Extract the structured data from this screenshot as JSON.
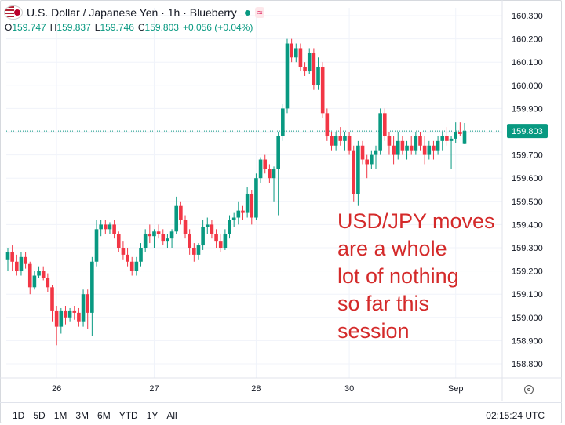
{
  "header": {
    "symbol_title": "U.S. Dollar / Japanese Yen · 1h · Blueberry",
    "wave_icon": "≈",
    "ohlc": [
      {
        "label": "O",
        "value": "159.747"
      },
      {
        "label": "H",
        "value": "159.837"
      },
      {
        "label": "L",
        "value": "159.746"
      },
      {
        "label": "C",
        "value": "159.803"
      }
    ],
    "change": "+0.056 (+0.04%)",
    "status_color": "#089981"
  },
  "annotation_lines": [
    "USD/JPY moves",
    "are a whole",
    "lot of nothing",
    "so far this",
    "session"
  ],
  "last_price_label": "159.803",
  "bottom": {
    "ranges": [
      "1D",
      "5D",
      "1M",
      "3M",
      "6M",
      "YTD",
      "1Y",
      "All"
    ],
    "clock": "02:15:24 UTC",
    "settings_icon": "settings-gear-icon"
  },
  "colors": {
    "up": "#089981",
    "down": "#f23645",
    "annotation": "#d42a2a"
  },
  "chart_data": {
    "type": "candlestick",
    "title": "",
    "ylim": [
      158.75,
      160.32
    ],
    "y_ticks": [
      "160.300",
      "160.200",
      "160.100",
      "160.000",
      "159.900",
      "159.800",
      "159.700",
      "159.600",
      "159.500",
      "159.400",
      "159.300",
      "159.200",
      "159.100",
      "159.000",
      "158.900",
      "158.800"
    ],
    "x_ticks": [
      {
        "label": "26",
        "index": 11
      },
      {
        "label": "27",
        "index": 33
      },
      {
        "label": "28",
        "index": 56
      },
      {
        "label": "30",
        "index": 77
      },
      {
        "label": "Sep",
        "index": 101
      }
    ],
    "last_price": 159.803,
    "candles": [
      {
        "o": 159.25,
        "h": 159.3,
        "l": 159.2,
        "c": 159.28
      },
      {
        "o": 159.28,
        "h": 159.31,
        "l": 159.2,
        "c": 159.24
      },
      {
        "o": 159.24,
        "h": 159.27,
        "l": 159.18,
        "c": 159.2
      },
      {
        "o": 159.2,
        "h": 159.28,
        "l": 159.18,
        "c": 159.26
      },
      {
        "o": 159.26,
        "h": 159.28,
        "l": 159.21,
        "c": 159.23
      },
      {
        "o": 159.23,
        "h": 159.24,
        "l": 159.1,
        "c": 159.13
      },
      {
        "o": 159.13,
        "h": 159.2,
        "l": 159.12,
        "c": 159.18
      },
      {
        "o": 159.18,
        "h": 159.22,
        "l": 159.17,
        "c": 159.2
      },
      {
        "o": 159.2,
        "h": 159.22,
        "l": 159.16,
        "c": 159.17
      },
      {
        "o": 159.17,
        "h": 159.19,
        "l": 159.11,
        "c": 159.13
      },
      {
        "o": 159.13,
        "h": 159.14,
        "l": 158.98,
        "c": 159.03
      },
      {
        "o": 159.03,
        "h": 159.05,
        "l": 158.88,
        "c": 158.96
      },
      {
        "o": 158.96,
        "h": 159.04,
        "l": 158.93,
        "c": 159.03
      },
      {
        "o": 159.03,
        "h": 159.05,
        "l": 158.97,
        "c": 159.0
      },
      {
        "o": 159.0,
        "h": 159.04,
        "l": 158.98,
        "c": 159.03
      },
      {
        "o": 159.03,
        "h": 159.05,
        "l": 158.99,
        "c": 159.02
      },
      {
        "o": 159.02,
        "h": 159.04,
        "l": 158.96,
        "c": 158.98
      },
      {
        "o": 158.98,
        "h": 159.12,
        "l": 158.96,
        "c": 159.1
      },
      {
        "o": 159.1,
        "h": 159.12,
        "l": 158.95,
        "c": 159.02
      },
      {
        "o": 159.02,
        "h": 159.26,
        "l": 158.92,
        "c": 159.24
      },
      {
        "o": 159.24,
        "h": 159.42,
        "l": 159.22,
        "c": 159.38
      },
      {
        "o": 159.38,
        "h": 159.42,
        "l": 159.35,
        "c": 159.4
      },
      {
        "o": 159.4,
        "h": 159.42,
        "l": 159.36,
        "c": 159.38
      },
      {
        "o": 159.38,
        "h": 159.41,
        "l": 159.36,
        "c": 159.4
      },
      {
        "o": 159.4,
        "h": 159.42,
        "l": 159.34,
        "c": 159.36
      },
      {
        "o": 159.36,
        "h": 159.37,
        "l": 159.28,
        "c": 159.3
      },
      {
        "o": 159.3,
        "h": 159.33,
        "l": 159.25,
        "c": 159.27
      },
      {
        "o": 159.27,
        "h": 159.3,
        "l": 159.22,
        "c": 159.24
      },
      {
        "o": 159.24,
        "h": 159.26,
        "l": 159.18,
        "c": 159.2
      },
      {
        "o": 159.2,
        "h": 159.26,
        "l": 159.18,
        "c": 159.24
      },
      {
        "o": 159.24,
        "h": 159.32,
        "l": 159.22,
        "c": 159.3
      },
      {
        "o": 159.3,
        "h": 159.38,
        "l": 159.28,
        "c": 159.36
      },
      {
        "o": 159.36,
        "h": 159.4,
        "l": 159.32,
        "c": 159.35
      },
      {
        "o": 159.35,
        "h": 159.38,
        "l": 159.3,
        "c": 159.37
      },
      {
        "o": 159.37,
        "h": 159.4,
        "l": 159.34,
        "c": 159.36
      },
      {
        "o": 159.36,
        "h": 159.38,
        "l": 159.31,
        "c": 159.33
      },
      {
        "o": 159.33,
        "h": 159.36,
        "l": 159.3,
        "c": 159.34
      },
      {
        "o": 159.34,
        "h": 159.38,
        "l": 159.3,
        "c": 159.37
      },
      {
        "o": 159.37,
        "h": 159.52,
        "l": 159.36,
        "c": 159.48
      },
      {
        "o": 159.48,
        "h": 159.5,
        "l": 159.4,
        "c": 159.42
      },
      {
        "o": 159.42,
        "h": 159.44,
        "l": 159.34,
        "c": 159.36
      },
      {
        "o": 159.36,
        "h": 159.38,
        "l": 159.27,
        "c": 159.3
      },
      {
        "o": 159.3,
        "h": 159.32,
        "l": 159.24,
        "c": 159.27
      },
      {
        "o": 159.27,
        "h": 159.32,
        "l": 159.25,
        "c": 159.31
      },
      {
        "o": 159.31,
        "h": 159.42,
        "l": 159.29,
        "c": 159.39
      },
      {
        "o": 159.39,
        "h": 159.43,
        "l": 159.36,
        "c": 159.4
      },
      {
        "o": 159.4,
        "h": 159.42,
        "l": 159.34,
        "c": 159.36
      },
      {
        "o": 159.36,
        "h": 159.38,
        "l": 159.3,
        "c": 159.33
      },
      {
        "o": 159.33,
        "h": 159.36,
        "l": 159.28,
        "c": 159.3
      },
      {
        "o": 159.3,
        "h": 159.38,
        "l": 159.29,
        "c": 159.36
      },
      {
        "o": 159.36,
        "h": 159.44,
        "l": 159.34,
        "c": 159.42
      },
      {
        "o": 159.42,
        "h": 159.45,
        "l": 159.39,
        "c": 159.43
      },
      {
        "o": 159.43,
        "h": 159.5,
        "l": 159.4,
        "c": 159.46
      },
      {
        "o": 159.46,
        "h": 159.48,
        "l": 159.42,
        "c": 159.45
      },
      {
        "o": 159.45,
        "h": 159.56,
        "l": 159.43,
        "c": 159.53
      },
      {
        "o": 159.53,
        "h": 159.55,
        "l": 159.4,
        "c": 159.43
      },
      {
        "o": 159.43,
        "h": 159.62,
        "l": 159.42,
        "c": 159.6
      },
      {
        "o": 159.6,
        "h": 159.69,
        "l": 159.58,
        "c": 159.68
      },
      {
        "o": 159.68,
        "h": 159.7,
        "l": 159.62,
        "c": 159.64
      },
      {
        "o": 159.64,
        "h": 159.66,
        "l": 159.58,
        "c": 159.6
      },
      {
        "o": 159.6,
        "h": 159.65,
        "l": 159.5,
        "c": 159.64
      },
      {
        "o": 159.64,
        "h": 159.8,
        "l": 159.44,
        "c": 159.78
      },
      {
        "o": 159.78,
        "h": 159.92,
        "l": 159.76,
        "c": 159.9
      },
      {
        "o": 159.9,
        "h": 160.2,
        "l": 159.88,
        "c": 160.18
      },
      {
        "o": 160.18,
        "h": 160.2,
        "l": 160.1,
        "c": 160.12
      },
      {
        "o": 160.12,
        "h": 160.18,
        "l": 160.1,
        "c": 160.16
      },
      {
        "o": 160.16,
        "h": 160.18,
        "l": 160.06,
        "c": 160.08
      },
      {
        "o": 160.08,
        "h": 160.1,
        "l": 160.04,
        "c": 160.06
      },
      {
        "o": 160.06,
        "h": 160.16,
        "l": 160.05,
        "c": 160.14
      },
      {
        "o": 160.14,
        "h": 160.16,
        "l": 159.98,
        "c": 160.0
      },
      {
        "o": 160.0,
        "h": 160.12,
        "l": 159.98,
        "c": 160.08
      },
      {
        "o": 160.08,
        "h": 160.1,
        "l": 159.86,
        "c": 159.88
      },
      {
        "o": 159.88,
        "h": 159.9,
        "l": 159.76,
        "c": 159.78
      },
      {
        "o": 159.78,
        "h": 159.8,
        "l": 159.72,
        "c": 159.74
      },
      {
        "o": 159.74,
        "h": 159.8,
        "l": 159.72,
        "c": 159.78
      },
      {
        "o": 159.78,
        "h": 159.82,
        "l": 159.74,
        "c": 159.76
      },
      {
        "o": 159.76,
        "h": 159.8,
        "l": 159.72,
        "c": 159.78
      },
      {
        "o": 159.78,
        "h": 159.8,
        "l": 159.7,
        "c": 159.72
      },
      {
        "o": 159.72,
        "h": 159.74,
        "l": 159.5,
        "c": 159.53
      },
      {
        "o": 159.53,
        "h": 159.76,
        "l": 159.48,
        "c": 159.74
      },
      {
        "o": 159.74,
        "h": 159.76,
        "l": 159.66,
        "c": 159.68
      },
      {
        "o": 159.68,
        "h": 159.7,
        "l": 159.6,
        "c": 159.66
      },
      {
        "o": 159.66,
        "h": 159.72,
        "l": 159.64,
        "c": 159.7
      },
      {
        "o": 159.7,
        "h": 159.74,
        "l": 159.64,
        "c": 159.72
      },
      {
        "o": 159.72,
        "h": 159.9,
        "l": 159.7,
        "c": 159.88
      },
      {
        "o": 159.88,
        "h": 159.9,
        "l": 159.76,
        "c": 159.78
      },
      {
        "o": 159.78,
        "h": 159.8,
        "l": 159.7,
        "c": 159.74
      },
      {
        "o": 159.74,
        "h": 159.78,
        "l": 159.66,
        "c": 159.7
      },
      {
        "o": 159.7,
        "h": 159.8,
        "l": 159.68,
        "c": 159.76
      },
      {
        "o": 159.76,
        "h": 159.78,
        "l": 159.7,
        "c": 159.72
      },
      {
        "o": 159.72,
        "h": 159.76,
        "l": 159.68,
        "c": 159.74
      },
      {
        "o": 159.74,
        "h": 159.78,
        "l": 159.7,
        "c": 159.72
      },
      {
        "o": 159.72,
        "h": 159.8,
        "l": 159.7,
        "c": 159.78
      },
      {
        "o": 159.78,
        "h": 159.8,
        "l": 159.72,
        "c": 159.74
      },
      {
        "o": 159.74,
        "h": 159.78,
        "l": 159.66,
        "c": 159.7
      },
      {
        "o": 159.7,
        "h": 159.76,
        "l": 159.68,
        "c": 159.74
      },
      {
        "o": 159.74,
        "h": 159.76,
        "l": 159.68,
        "c": 159.72
      },
      {
        "o": 159.72,
        "h": 159.78,
        "l": 159.7,
        "c": 159.76
      },
      {
        "o": 159.76,
        "h": 159.8,
        "l": 159.72,
        "c": 159.78
      },
      {
        "o": 159.78,
        "h": 159.82,
        "l": 159.74,
        "c": 159.76
      },
      {
        "o": 159.76,
        "h": 159.78,
        "l": 159.64,
        "c": 159.77
      },
      {
        "o": 159.77,
        "h": 159.84,
        "l": 159.75,
        "c": 159.8
      },
      {
        "o": 159.8,
        "h": 159.84,
        "l": 159.78,
        "c": 159.79
      },
      {
        "o": 159.747,
        "h": 159.837,
        "l": 159.746,
        "c": 159.803
      }
    ]
  }
}
